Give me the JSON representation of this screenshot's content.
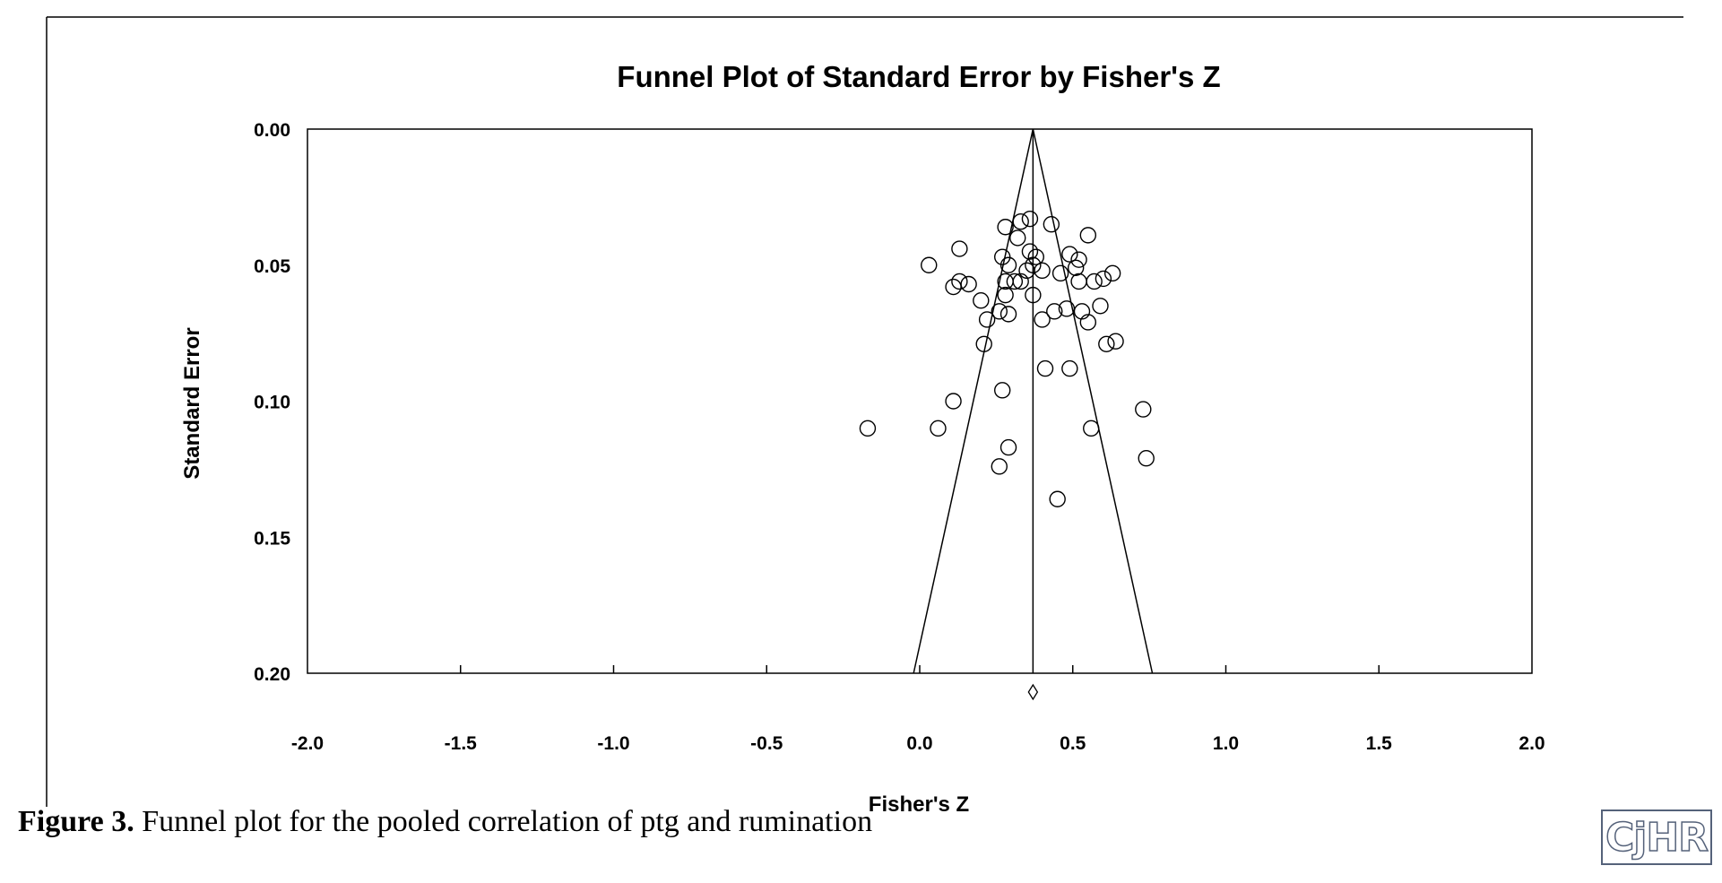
{
  "chart_data": {
    "type": "scatter",
    "title": "Funnel Plot of Standard Error by Fisher's Z",
    "xlabel": "Fisher's Z",
    "ylabel": "Standard Error",
    "xlim": [
      -2.0,
      2.0
    ],
    "ylim": [
      0.0,
      0.2
    ],
    "y_inverted": true,
    "x_ticks": [
      "-2.0",
      "-1.5",
      "-1.0",
      "-0.5",
      "0.0",
      "0.5",
      "1.0",
      "1.5",
      "2.0"
    ],
    "y_ticks": [
      "0.00",
      "0.05",
      "0.10",
      "0.15",
      "0.20"
    ],
    "pooled_estimate": 0.37,
    "funnel_bottom": [
      -0.02,
      0.76
    ],
    "points": [
      {
        "x": 0.28,
        "y": 0.036
      },
      {
        "x": 0.33,
        "y": 0.034
      },
      {
        "x": 0.36,
        "y": 0.033
      },
      {
        "x": 0.43,
        "y": 0.035
      },
      {
        "x": 0.55,
        "y": 0.039
      },
      {
        "x": 0.32,
        "y": 0.04
      },
      {
        "x": 0.13,
        "y": 0.044
      },
      {
        "x": 0.36,
        "y": 0.045
      },
      {
        "x": 0.27,
        "y": 0.047
      },
      {
        "x": 0.49,
        "y": 0.046
      },
      {
        "x": 0.38,
        "y": 0.047
      },
      {
        "x": 0.52,
        "y": 0.048
      },
      {
        "x": 0.03,
        "y": 0.05
      },
      {
        "x": 0.29,
        "y": 0.05
      },
      {
        "x": 0.37,
        "y": 0.05
      },
      {
        "x": 0.51,
        "y": 0.051
      },
      {
        "x": 0.35,
        "y": 0.052
      },
      {
        "x": 0.4,
        "y": 0.052
      },
      {
        "x": 0.46,
        "y": 0.053
      },
      {
        "x": 0.63,
        "y": 0.053
      },
      {
        "x": 0.6,
        "y": 0.055
      },
      {
        "x": 0.13,
        "y": 0.056
      },
      {
        "x": 0.28,
        "y": 0.056
      },
      {
        "x": 0.31,
        "y": 0.056
      },
      {
        "x": 0.33,
        "y": 0.056
      },
      {
        "x": 0.52,
        "y": 0.056
      },
      {
        "x": 0.57,
        "y": 0.056
      },
      {
        "x": 0.16,
        "y": 0.057
      },
      {
        "x": 0.11,
        "y": 0.058
      },
      {
        "x": 0.28,
        "y": 0.061
      },
      {
        "x": 0.37,
        "y": 0.061
      },
      {
        "x": 0.2,
        "y": 0.063
      },
      {
        "x": 0.59,
        "y": 0.065
      },
      {
        "x": 0.48,
        "y": 0.066
      },
      {
        "x": 0.26,
        "y": 0.067
      },
      {
        "x": 0.44,
        "y": 0.067
      },
      {
        "x": 0.53,
        "y": 0.067
      },
      {
        "x": 0.29,
        "y": 0.068
      },
      {
        "x": 0.22,
        "y": 0.07
      },
      {
        "x": 0.4,
        "y": 0.07
      },
      {
        "x": 0.55,
        "y": 0.071
      },
      {
        "x": 0.64,
        "y": 0.078
      },
      {
        "x": 0.61,
        "y": 0.079
      },
      {
        "x": 0.21,
        "y": 0.079
      },
      {
        "x": 0.41,
        "y": 0.088
      },
      {
        "x": 0.49,
        "y": 0.088
      },
      {
        "x": 0.27,
        "y": 0.096
      },
      {
        "x": 0.11,
        "y": 0.1
      },
      {
        "x": 0.73,
        "y": 0.103
      },
      {
        "x": -0.17,
        "y": 0.11
      },
      {
        "x": 0.06,
        "y": 0.11
      },
      {
        "x": 0.56,
        "y": 0.11
      },
      {
        "x": 0.29,
        "y": 0.117
      },
      {
        "x": 0.74,
        "y": 0.121
      },
      {
        "x": 0.26,
        "y": 0.124
      },
      {
        "x": 0.45,
        "y": 0.136
      }
    ]
  },
  "caption": {
    "label": "Figure 3.",
    "text": " Funnel plot for the pooled correlation of ptg and rumination"
  },
  "logo": {
    "text": "CjHR"
  }
}
